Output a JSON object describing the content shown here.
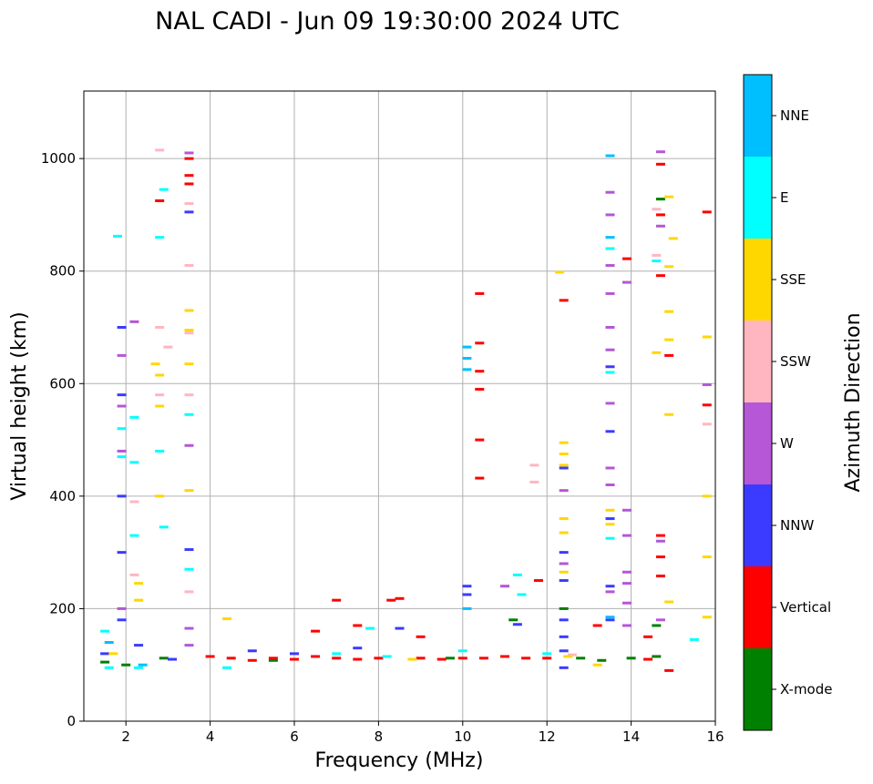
{
  "chart_data": {
    "type": "scatter",
    "title": "NAL CADI - Jun 09 19:30:00 2024 UTC",
    "xlabel": "Frequency (MHz)",
    "ylabel": "Virtual height (km)",
    "xlim": [
      1,
      16
    ],
    "ylim": [
      0,
      1120
    ],
    "xticks": [
      2,
      4,
      6,
      8,
      10,
      12,
      14,
      16
    ],
    "yticks": [
      0,
      200,
      400,
      600,
      800,
      1000
    ],
    "grid": true,
    "colorbar": {
      "title": "Azimuth Direction",
      "placement": "right",
      "categories": [
        {
          "label": "X-mode",
          "color": "#008000"
        },
        {
          "label": "Vertical",
          "color": "#ff0000"
        },
        {
          "label": "NNW",
          "color": "#3b3bff"
        },
        {
          "label": "W",
          "color": "#b557d6"
        },
        {
          "label": "SSW",
          "color": "#ffb6c1"
        },
        {
          "label": "SSE",
          "color": "#ffd700"
        },
        {
          "label": "E",
          "color": "#00ffff"
        },
        {
          "label": "NNE",
          "color": "#00bfff"
        }
      ]
    },
    "series": [
      {
        "name": "X-mode",
        "points": [
          [
            1.5,
            105
          ],
          [
            2.0,
            100
          ],
          [
            2.9,
            112
          ],
          [
            5.5,
            108
          ],
          [
            9.7,
            112
          ],
          [
            11.2,
            180
          ],
          [
            12.4,
            200
          ],
          [
            12.8,
            112
          ],
          [
            13.3,
            108
          ],
          [
            14.0,
            112
          ],
          [
            14.6,
            115
          ],
          [
            14.6,
            170
          ],
          [
            14.7,
            928
          ]
        ]
      },
      {
        "name": "Vertical",
        "points": [
          [
            2.8,
            925
          ],
          [
            3.5,
            1000
          ],
          [
            3.5,
            970
          ],
          [
            3.5,
            955
          ],
          [
            4.0,
            115
          ],
          [
            4.5,
            112
          ],
          [
            5.0,
            108
          ],
          [
            5.5,
            112
          ],
          [
            6.0,
            110
          ],
          [
            6.5,
            115
          ],
          [
            6.5,
            160
          ],
          [
            7.0,
            112
          ],
          [
            7.0,
            215
          ],
          [
            7.5,
            110
          ],
          [
            7.5,
            170
          ],
          [
            8.0,
            112
          ],
          [
            8.3,
            215
          ],
          [
            8.5,
            218
          ],
          [
            9.0,
            112
          ],
          [
            9.0,
            150
          ],
          [
            9.5,
            110
          ],
          [
            10.0,
            112
          ],
          [
            10.4,
            760
          ],
          [
            10.4,
            672
          ],
          [
            10.4,
            622
          ],
          [
            10.4,
            590
          ],
          [
            10.4,
            500
          ],
          [
            10.4,
            432
          ],
          [
            10.5,
            112
          ],
          [
            11.0,
            115
          ],
          [
            11.5,
            112
          ],
          [
            11.8,
            250
          ],
          [
            12.0,
            112
          ],
          [
            12.4,
            748
          ],
          [
            13.2,
            170
          ],
          [
            13.9,
            822
          ],
          [
            14.4,
            150
          ],
          [
            14.4,
            110
          ],
          [
            14.7,
            990
          ],
          [
            14.7,
            900
          ],
          [
            14.7,
            792
          ],
          [
            14.7,
            330
          ],
          [
            14.7,
            292
          ],
          [
            14.7,
            258
          ],
          [
            14.9,
            650
          ],
          [
            14.9,
            90
          ],
          [
            15.8,
            905
          ],
          [
            15.8,
            562
          ]
        ]
      },
      {
        "name": "NNW",
        "points": [
          [
            1.5,
            120
          ],
          [
            1.9,
            180
          ],
          [
            1.9,
            300
          ],
          [
            1.9,
            400
          ],
          [
            1.9,
            580
          ],
          [
            1.9,
            700
          ],
          [
            2.3,
            135
          ],
          [
            3.1,
            110
          ],
          [
            3.5,
            305
          ],
          [
            3.5,
            905
          ],
          [
            5.0,
            125
          ],
          [
            6.0,
            120
          ],
          [
            7.5,
            130
          ],
          [
            8.5,
            165
          ],
          [
            10.1,
            240
          ],
          [
            10.1,
            225
          ],
          [
            11.3,
            172
          ],
          [
            12.4,
            300
          ],
          [
            12.4,
            250
          ],
          [
            12.4,
            180
          ],
          [
            12.4,
            150
          ],
          [
            12.4,
            125
          ],
          [
            12.4,
            95
          ],
          [
            12.4,
            450
          ],
          [
            13.5,
            630
          ],
          [
            13.5,
            180
          ],
          [
            13.5,
            240
          ],
          [
            13.5,
            360
          ],
          [
            13.5,
            515
          ]
        ]
      },
      {
        "name": "W",
        "points": [
          [
            1.9,
            200
          ],
          [
            1.9,
            480
          ],
          [
            1.9,
            560
          ],
          [
            1.9,
            650
          ],
          [
            2.2,
            710
          ],
          [
            3.5,
            1010
          ],
          [
            3.5,
            490
          ],
          [
            3.5,
            135
          ],
          [
            3.5,
            165
          ],
          [
            11.0,
            240
          ],
          [
            12.4,
            410
          ],
          [
            12.4,
            280
          ],
          [
            13.5,
            940
          ],
          [
            13.5,
            900
          ],
          [
            13.5,
            810
          ],
          [
            13.5,
            760
          ],
          [
            13.5,
            700
          ],
          [
            13.5,
            660
          ],
          [
            13.5,
            565
          ],
          [
            13.5,
            450
          ],
          [
            13.5,
            420
          ],
          [
            13.5,
            230
          ],
          [
            13.9,
            780
          ],
          [
            13.9,
            375
          ],
          [
            13.9,
            330
          ],
          [
            13.9,
            265
          ],
          [
            13.9,
            245
          ],
          [
            13.9,
            210
          ],
          [
            13.9,
            170
          ],
          [
            14.7,
            1012
          ],
          [
            14.7,
            880
          ],
          [
            14.7,
            320
          ],
          [
            14.7,
            180
          ],
          [
            15.8,
            598
          ]
        ]
      },
      {
        "name": "SSW",
        "points": [
          [
            2.2,
            260
          ],
          [
            2.2,
            390
          ],
          [
            2.8,
            1015
          ],
          [
            2.8,
            700
          ],
          [
            2.8,
            580
          ],
          [
            3.0,
            665
          ],
          [
            3.5,
            920
          ],
          [
            3.5,
            810
          ],
          [
            3.5,
            690
          ],
          [
            3.5,
            580
          ],
          [
            3.5,
            230
          ],
          [
            11.7,
            455
          ],
          [
            11.7,
            425
          ],
          [
            12.6,
            118
          ],
          [
            14.6,
            828
          ],
          [
            14.6,
            910
          ],
          [
            15.8,
            528
          ]
        ]
      },
      {
        "name": "SSE",
        "points": [
          [
            1.7,
            120
          ],
          [
            2.3,
            245
          ],
          [
            2.3,
            215
          ],
          [
            2.7,
            635
          ],
          [
            2.8,
            615
          ],
          [
            2.8,
            560
          ],
          [
            2.8,
            400
          ],
          [
            3.5,
            730
          ],
          [
            3.5,
            695
          ],
          [
            3.5,
            635
          ],
          [
            3.5,
            410
          ],
          [
            4.4,
            182
          ],
          [
            8.8,
            110
          ],
          [
            12.3,
            798
          ],
          [
            12.4,
            495
          ],
          [
            12.4,
            475
          ],
          [
            12.4,
            455
          ],
          [
            12.4,
            360
          ],
          [
            12.4,
            335
          ],
          [
            12.4,
            265
          ],
          [
            12.5,
            115
          ],
          [
            13.2,
            100
          ],
          [
            13.5,
            375
          ],
          [
            13.5,
            350
          ],
          [
            14.6,
            655
          ],
          [
            14.9,
            932
          ],
          [
            14.9,
            808
          ],
          [
            14.9,
            728
          ],
          [
            14.9,
            678
          ],
          [
            14.9,
            545
          ],
          [
            14.9,
            212
          ],
          [
            15.0,
            858
          ],
          [
            15.8,
            683
          ],
          [
            15.8,
            400
          ],
          [
            15.8,
            292
          ],
          [
            15.8,
            185
          ]
        ]
      },
      {
        "name": "E",
        "points": [
          [
            1.5,
            160
          ],
          [
            1.6,
            95
          ],
          [
            1.8,
            862
          ],
          [
            1.9,
            470
          ],
          [
            1.9,
            520
          ],
          [
            2.2,
            540
          ],
          [
            2.2,
            460
          ],
          [
            2.2,
            330
          ],
          [
            2.3,
            95
          ],
          [
            2.8,
            860
          ],
          [
            2.8,
            480
          ],
          [
            2.9,
            945
          ],
          [
            2.9,
            345
          ],
          [
            3.5,
            545
          ],
          [
            3.5,
            270
          ],
          [
            4.4,
            95
          ],
          [
            7.0,
            120
          ],
          [
            7.8,
            165
          ],
          [
            8.2,
            115
          ],
          [
            10.0,
            125
          ],
          [
            11.3,
            260
          ],
          [
            11.4,
            225
          ],
          [
            12.0,
            120
          ],
          [
            13.5,
            325
          ],
          [
            13.5,
            620
          ],
          [
            13.5,
            840
          ],
          [
            14.6,
            818
          ],
          [
            15.5,
            145
          ]
        ]
      },
      {
        "name": "NNE",
        "points": [
          [
            1.6,
            140
          ],
          [
            2.4,
            100
          ],
          [
            10.1,
            665
          ],
          [
            10.1,
            645
          ],
          [
            10.1,
            625
          ],
          [
            10.1,
            200
          ],
          [
            13.5,
            1005
          ],
          [
            13.5,
            860
          ],
          [
            13.5,
            185
          ]
        ]
      }
    ]
  }
}
